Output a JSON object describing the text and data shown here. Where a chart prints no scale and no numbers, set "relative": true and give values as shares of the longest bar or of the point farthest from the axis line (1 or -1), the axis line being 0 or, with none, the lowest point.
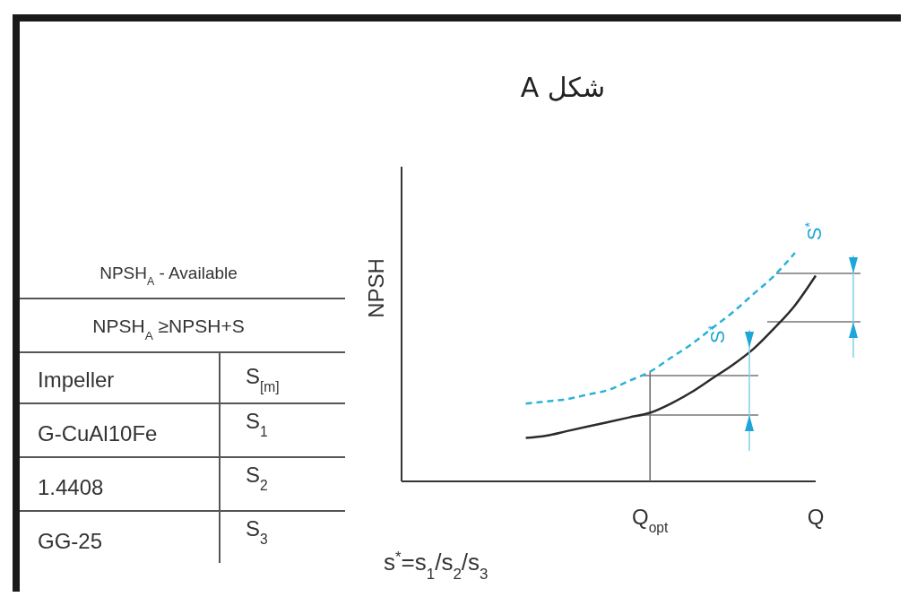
{
  "chart_data": {
    "type": "line",
    "title": "شکل A",
    "ylabel": "NPSH",
    "relative": true,
    "categories": [
      null,
      null,
      null,
      null,
      null,
      null,
      null,
      null,
      null,
      null,
      null,
      null,
      "Q$_{opt}$",
      null,
      null,
      null,
      null,
      null,
      null,
      null,
      "Q"
    ],
    "series": [
      {
        "color": "#2b2b2b",
        "line_style": "solid",
        "values": [
          null,
          null,
          null,
          null,
          null,
          null,
          0.19,
          0.2,
          0.22,
          0.24,
          0.26,
          0.28,
          0.3,
          0.34,
          0.39,
          0.45,
          0.51,
          0.58,
          0.67,
          0.77,
          0.9
        ]
      },
      {
        "color": "#29b3d6",
        "line_style": "dashed",
        "values": [
          null,
          null,
          null,
          null,
          null,
          null,
          0.34,
          0.35,
          0.36,
          0.38,
          0.4,
          0.44,
          0.48,
          0.54,
          0.6,
          0.67,
          0.74,
          0.82,
          0.9,
          1.0,
          null
        ]
      }
    ],
    "ref_lines": [
      {
        "axis": "x",
        "value": "Q$_{opt}$",
        "color": "#666666"
      }
    ],
    "annotations": [
      "S$^{*}$",
      "S$^{*}$",
      "s$^{*}$=s$_{1}$/s$_{2}$/s$_{3}$",
      "NPSH$_{A}$ - Available",
      "NPSH$_{A}$ ≥NPSH+S",
      "Impeller",
      "S$_{[m]}$",
      "G-CuAl10Fe",
      "S$_{1}$",
      "1.4408",
      "S$_{2}$",
      "GG-25",
      "S$_{3}$"
    ],
    "marker": "none"
  }
}
